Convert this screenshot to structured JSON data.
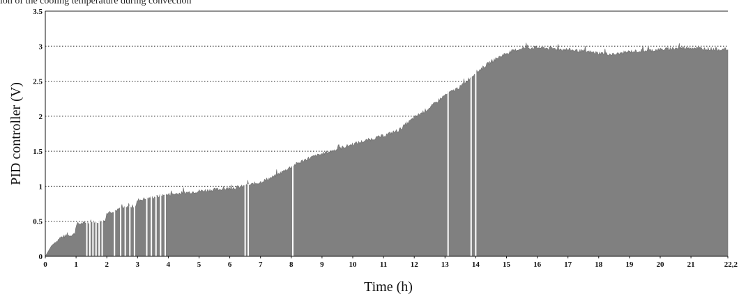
{
  "caption": "ion of the cooling temperature during convection",
  "chart_data": {
    "type": "area",
    "title": "",
    "xlabel": "Time (h)",
    "ylabel": "PID controller (V)",
    "xlim": [
      0,
      22.2
    ],
    "ylim": [
      0,
      3.5
    ],
    "x_tick_labels": [
      "0",
      "1",
      "2",
      "3",
      "4",
      "5",
      "6",
      "7",
      "8",
      "9",
      "10",
      "11",
      "12",
      "13",
      "14",
      "15",
      "16",
      "17",
      "18",
      "19",
      "20",
      "21",
      "22,2"
    ],
    "y_tick_labels": [
      "0",
      "0.5",
      "1",
      "1.5",
      "2",
      "2.5",
      "3",
      "3.5"
    ],
    "y_tick_values": [
      0,
      0.5,
      1,
      1.5,
      2,
      2.5,
      3,
      3.5
    ],
    "grid": "horizontal dotted",
    "color": "#808080",
    "series": [
      {
        "x": [
          0,
          0.2,
          0.5,
          0.8,
          0.97,
          1.0,
          1.5,
          1.95,
          2.0,
          2.5,
          2.95,
          3.0,
          3.5,
          4.0,
          5.0,
          6.0,
          6.5,
          7.0,
          7.5,
          8.0,
          8.5,
          9.0,
          10.0,
          11.0,
          11.5,
          12.0,
          12.5,
          13.0,
          13.5,
          14.0,
          14.5,
          15.0,
          15.5,
          16.0,
          17.0,
          18.0,
          18.5,
          19.0,
          20.0,
          20.5,
          21.0,
          21.5,
          22.2
        ],
        "y": [
          0,
          0.15,
          0.27,
          0.3,
          0.32,
          0.46,
          0.48,
          0.5,
          0.62,
          0.68,
          0.72,
          0.8,
          0.84,
          0.88,
          0.93,
          0.97,
          1.0,
          1.06,
          1.15,
          1.28,
          1.39,
          1.46,
          1.6,
          1.72,
          1.8,
          1.98,
          2.12,
          2.3,
          2.42,
          2.62,
          2.78,
          2.9,
          2.97,
          2.98,
          2.95,
          2.9,
          2.88,
          2.92,
          2.95,
          2.97,
          2.98,
          2.96,
          2.95
        ]
      }
    ],
    "gaps_x": [
      1.35,
      1.45,
      1.55,
      1.65,
      1.75,
      1.85,
      2.25,
      2.45,
      2.6,
      2.75,
      2.9,
      3.3,
      3.45,
      3.6,
      3.75,
      3.9,
      6.5,
      6.6,
      8.05,
      13.1,
      13.85,
      14.0
    ]
  }
}
